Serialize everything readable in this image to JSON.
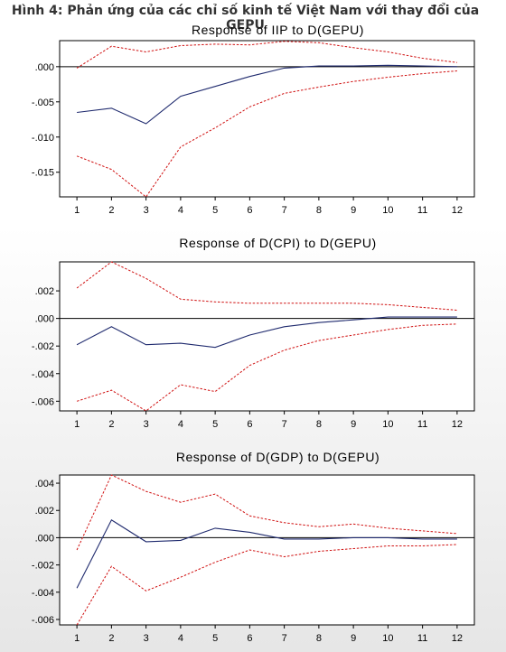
{
  "figure_title": "Hình 4: Phản ứng của các chỉ số kinh tế Việt Nam với thay đổi của GEPU",
  "colors": {
    "response": "#1f2a6e",
    "band": "#d01010",
    "axis": "#000000"
  },
  "chart_data": [
    {
      "type": "line",
      "title": "Response of IIP to D(GEPU)",
      "x": [
        1,
        2,
        3,
        4,
        5,
        6,
        7,
        8,
        9,
        10,
        11,
        12
      ],
      "x_tick_labels": [
        "1",
        "2",
        "3",
        "4",
        "5",
        "6",
        "7",
        "8",
        "9",
        "10",
        "11",
        "12"
      ],
      "y_tick_labels": [
        ".000",
        "-.005",
        "-.010",
        "-.015"
      ],
      "y_ticks": [
        0,
        -0.005,
        -0.01,
        -0.015
      ],
      "ylim": [
        -0.0185,
        0.0037
      ],
      "series": [
        {
          "role": "response",
          "values": [
            -0.0065,
            -0.0059,
            -0.0081,
            -0.0042,
            -0.0028,
            -0.0014,
            -0.0002,
            0.0001,
            0.0001,
            0.0002,
            0.0001,
            0.0
          ]
        },
        {
          "role": "upper",
          "values": [
            -0.0002,
            0.0029,
            0.0021,
            0.003,
            0.0032,
            0.0031,
            0.0036,
            0.0034,
            0.0027,
            0.0021,
            0.0012,
            0.0006
          ]
        },
        {
          "role": "lower",
          "values": [
            -0.0127,
            -0.0146,
            -0.0185,
            -0.0114,
            -0.0087,
            -0.0057,
            -0.0038,
            -0.0029,
            -0.0021,
            -0.0015,
            -0.001,
            -0.0006
          ]
        }
      ]
    },
    {
      "type": "line",
      "title": "Response of D(CPI) to D(GEPU)",
      "x": [
        1,
        2,
        3,
        4,
        5,
        6,
        7,
        8,
        9,
        10,
        11,
        12
      ],
      "x_tick_labels": [
        "1",
        "2",
        "3",
        "4",
        "5",
        "6",
        "7",
        "8",
        "9",
        "10",
        "11",
        "12"
      ],
      "y_tick_labels": [
        ".002",
        ".000",
        "-.002",
        "-.004",
        "-.006"
      ],
      "y_ticks": [
        0.002,
        0,
        -0.002,
        -0.004,
        -0.006
      ],
      "ylim": [
        -0.0067,
        0.0041
      ],
      "series": [
        {
          "role": "response",
          "values": [
            -0.0019,
            -0.0006,
            -0.0019,
            -0.0018,
            -0.0021,
            -0.0012,
            -0.0006,
            -0.0003,
            -0.0001,
            0.0001,
            0.0001,
            0.0001
          ]
        },
        {
          "role": "upper",
          "values": [
            0.0022,
            0.0041,
            0.0029,
            0.0014,
            0.0012,
            0.0011,
            0.0011,
            0.0011,
            0.0011,
            0.001,
            0.0008,
            0.0006
          ]
        },
        {
          "role": "lower",
          "values": [
            -0.006,
            -0.0052,
            -0.0067,
            -0.0048,
            -0.0053,
            -0.0034,
            -0.0023,
            -0.0016,
            -0.0012,
            -0.0008,
            -0.0005,
            -0.0004
          ]
        }
      ]
    },
    {
      "type": "line",
      "title": "Response of D(GDP) to D(GEPU)",
      "x": [
        1,
        2,
        3,
        4,
        5,
        6,
        7,
        8,
        9,
        10,
        11,
        12
      ],
      "x_tick_labels": [
        "1",
        "2",
        "3",
        "4",
        "5",
        "6",
        "7",
        "8",
        "9",
        "10",
        "11",
        "12"
      ],
      "y_tick_labels": [
        ".004",
        ".002",
        ".000",
        "-.002",
        "-.004",
        "-.006"
      ],
      "y_ticks": [
        0.004,
        0.002,
        0,
        -0.002,
        -0.004,
        -0.006
      ],
      "ylim": [
        -0.0064,
        0.0046
      ],
      "series": [
        {
          "role": "response",
          "values": [
            -0.0037,
            0.0013,
            -0.0003,
            -0.0002,
            0.0007,
            0.0004,
            -0.0001,
            -0.0001,
            0.0,
            0.0,
            -0.0001,
            -0.0001
          ]
        },
        {
          "role": "upper",
          "values": [
            -0.0009,
            0.0046,
            0.0034,
            0.0026,
            0.0032,
            0.0016,
            0.0011,
            0.0008,
            0.001,
            0.0007,
            0.0005,
            0.0003
          ]
        },
        {
          "role": "lower",
          "values": [
            -0.0064,
            -0.0021,
            -0.0039,
            -0.0029,
            -0.0018,
            -0.0009,
            -0.0014,
            -0.001,
            -0.0008,
            -0.0006,
            -0.0006,
            -0.0005
          ]
        }
      ]
    }
  ]
}
